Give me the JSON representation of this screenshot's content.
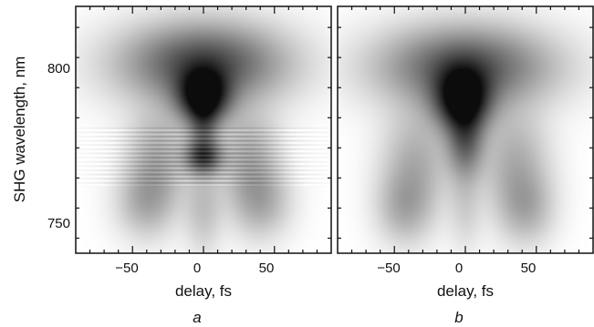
{
  "chart_data": [
    {
      "type": "heatmap",
      "panel_label": "a",
      "xlabel": "delay, fs",
      "ylabel": "SHG wavelength, nm",
      "xlim": [
        -90,
        90
      ],
      "ylim": [
        740,
        822
      ],
      "x_ticks": [
        -50,
        0,
        50
      ],
      "y_ticks": [
        750,
        800
      ],
      "x_tick_labels": [
        "−50",
        "0",
        "50"
      ],
      "y_tick_labels": [
        "750",
        "800"
      ],
      "colormap": "grayscale (white = low, black = high)",
      "features": [
        {
          "kind": "peak",
          "x": 0,
          "y": 792,
          "sigma_x": 12,
          "sigma_y": 6,
          "intensity": 1.0
        },
        {
          "kind": "peak",
          "x": 0,
          "y": 772,
          "sigma_x": 9,
          "sigma_y": 4,
          "intensity": 0.65
        },
        {
          "kind": "neck",
          "x": 0,
          "y": 782,
          "sigma_x": 7,
          "sigma_y": 6,
          "intensity": 0.35
        },
        {
          "kind": "upper-wings",
          "x": 0,
          "y": 803,
          "sigma_x": 38,
          "sigma_y": 9,
          "intensity": 0.35
        },
        {
          "kind": "side-lobes",
          "x": 32,
          "y": 772,
          "sigma_x": 15,
          "sigma_y": 10,
          "intensity": 0.28
        },
        {
          "kind": "lower-wings",
          "x": 40,
          "y": 757,
          "sigma_x": 14,
          "sigma_y": 8,
          "intensity": 0.25
        },
        {
          "kind": "stem",
          "x": 0,
          "y": 755,
          "sigma_x": 9,
          "sigma_y": 10,
          "intensity": 0.18
        }
      ],
      "fringes": {
        "y_range": [
          762,
          782
        ],
        "period_nm": 1.4,
        "amplitude": 0.12
      }
    },
    {
      "type": "heatmap",
      "panel_label": "b",
      "xlabel": "delay, fs",
      "ylabel": "",
      "xlim": [
        -90,
        90
      ],
      "ylim": [
        740,
        822
      ],
      "x_ticks": [
        -50,
        0,
        50
      ],
      "y_ticks": [
        750,
        800
      ],
      "x_tick_labels": [
        "−50",
        "0",
        "50"
      ],
      "y_tick_labels": [],
      "colormap": "grayscale (white = low, black = high)",
      "features": [
        {
          "kind": "peak",
          "x": -2,
          "y": 791,
          "sigma_x": 13,
          "sigma_y": 7,
          "intensity": 1.0
        },
        {
          "kind": "tail",
          "x": 0,
          "y": 777,
          "sigma_x": 9,
          "sigma_y": 8,
          "intensity": 0.5
        },
        {
          "kind": "upper-wings",
          "x": 0,
          "y": 802,
          "sigma_x": 40,
          "sigma_y": 9,
          "intensity": 0.32
        },
        {
          "kind": "side-lobes",
          "x": 35,
          "y": 770,
          "sigma_x": 16,
          "sigma_y": 12,
          "intensity": 0.25
        },
        {
          "kind": "lower-wings",
          "x": 43,
          "y": 755,
          "sigma_x": 13,
          "sigma_y": 8,
          "intensity": 0.22
        },
        {
          "kind": "stem",
          "x": 0,
          "y": 756,
          "sigma_x": 8,
          "sigma_y": 10,
          "intensity": 0.12
        }
      ],
      "fringes": null
    }
  ]
}
